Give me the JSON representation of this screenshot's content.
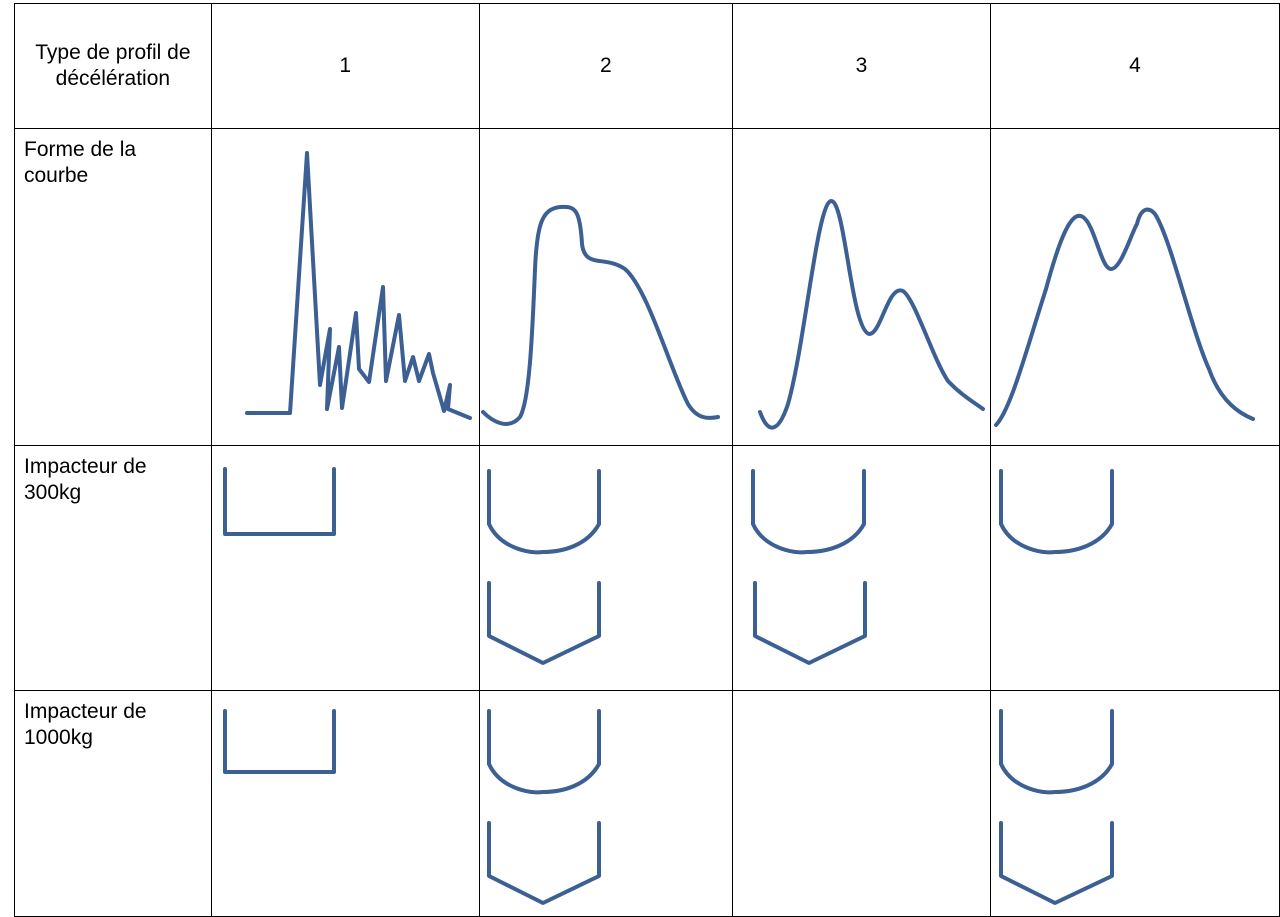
{
  "header": {
    "label": "Type de profil de décélération",
    "columns": [
      "1",
      "2",
      "3",
      "4"
    ]
  },
  "rows": [
    {
      "label": "Forme de la courbe"
    },
    {
      "label": "Impacteur de 300kg"
    },
    {
      "label": "Impacteur de 1000kg"
    }
  ],
  "colors": {
    "stroke": "#3c5f94",
    "border": "#000000"
  },
  "icons": {
    "flat": "flat-bottom-impactor-icon",
    "round": "rounded-bottom-impactor-icon",
    "pointed": "pointed-bottom-impactor-icon"
  },
  "impactors": {
    "300kg": [
      [
        "flat"
      ],
      [
        "round",
        "pointed"
      ],
      [
        "round",
        "pointed"
      ],
      [
        "round"
      ]
    ],
    "1000kg": [
      [
        "flat"
      ],
      [
        "round",
        "pointed"
      ],
      [],
      [
        "round",
        "pointed"
      ]
    ]
  }
}
